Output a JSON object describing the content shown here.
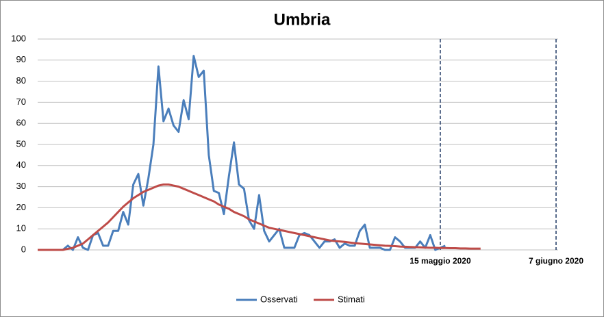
{
  "chart_data": {
    "type": "line",
    "title": "Umbria",
    "categories": [
      null,
      null,
      null,
      null,
      null,
      null,
      null,
      null,
      null,
      null,
      null,
      null,
      null,
      null,
      null,
      null,
      null,
      null,
      null,
      null,
      null,
      null,
      null,
      null,
      null,
      null,
      null,
      null,
      null,
      null,
      null,
      null,
      null,
      null,
      null,
      null,
      null,
      null,
      null,
      null,
      null,
      null,
      null,
      null,
      null,
      null,
      null,
      null,
      null,
      null,
      null,
      null,
      null,
      null,
      null,
      null,
      null,
      null,
      null,
      null,
      null,
      null,
      null,
      null,
      null,
      null,
      null,
      null,
      null,
      null,
      null,
      null,
      null,
      null,
      null,
      null,
      null,
      null,
      null,
      null,
      "15 maggio 2020",
      null,
      null,
      null,
      null,
      null,
      null,
      null,
      null,
      null,
      null,
      null,
      null,
      null,
      null,
      null,
      null,
      null,
      null,
      null,
      null,
      null,
      null,
      "7 giugno 2020"
    ],
    "series": [
      {
        "name": "Osservati",
        "color": "#4a7ebb",
        "values": [
          0,
          0,
          0,
          0,
          0,
          0,
          2,
          0,
          6,
          1,
          0,
          7,
          8,
          2,
          2,
          9,
          9,
          18,
          12,
          31,
          36,
          21,
          34,
          50,
          87,
          61,
          67,
          59,
          56,
          71,
          62,
          92,
          82,
          85,
          45,
          28,
          27,
          17,
          35,
          51,
          31,
          29,
          14,
          10,
          26,
          9,
          4,
          7,
          10,
          1,
          1,
          1,
          7,
          8,
          7,
          4,
          1,
          4,
          4,
          5,
          1,
          3,
          2,
          2,
          9,
          12,
          1,
          1,
          1,
          0,
          0,
          6,
          4,
          1,
          1,
          1,
          4,
          1,
          7,
          0,
          1,
          2,
          null,
          null,
          null,
          null,
          null,
          null,
          null,
          null,
          null,
          null,
          null,
          null,
          null,
          null,
          null,
          null,
          null,
          null,
          null,
          null,
          null,
          null
        ]
      },
      {
        "name": "Stimati",
        "color": "#be4b48",
        "values": [
          0,
          0,
          0,
          0,
          0,
          0,
          0.5,
          1,
          2,
          3,
          5,
          7,
          9,
          11,
          13,
          15.5,
          18,
          20.5,
          22.5,
          24.5,
          26,
          27.5,
          28.5,
          29.5,
          30.5,
          31,
          31,
          30.5,
          30,
          29,
          28,
          27,
          26,
          25,
          24,
          23,
          21.5,
          20.5,
          19.5,
          18,
          17,
          16,
          14.5,
          13.5,
          12.5,
          11.5,
          10.5,
          10,
          9.5,
          9,
          8.5,
          8,
          7.5,
          7,
          6.5,
          6,
          5.5,
          5,
          4.5,
          4.2,
          4,
          3.8,
          3.5,
          3.2,
          3,
          2.8,
          2.6,
          2.4,
          2.2,
          2,
          1.9,
          1.8,
          1.6,
          1.5,
          1.4,
          1.3,
          1.2,
          1.1,
          1,
          1,
          0.9,
          0.9,
          0.8,
          0.8,
          0.7,
          0.7,
          0.6,
          0.6,
          0.6,
          null,
          null,
          null,
          null,
          null,
          null,
          null,
          null,
          null,
          null,
          null,
          null,
          null,
          null,
          null
        ]
      }
    ],
    "ylim": [
      0,
      100
    ],
    "yticks": [
      0,
      10,
      20,
      30,
      40,
      50,
      60,
      70,
      80,
      90,
      100
    ],
    "grid": true,
    "legend": "bottom"
  }
}
